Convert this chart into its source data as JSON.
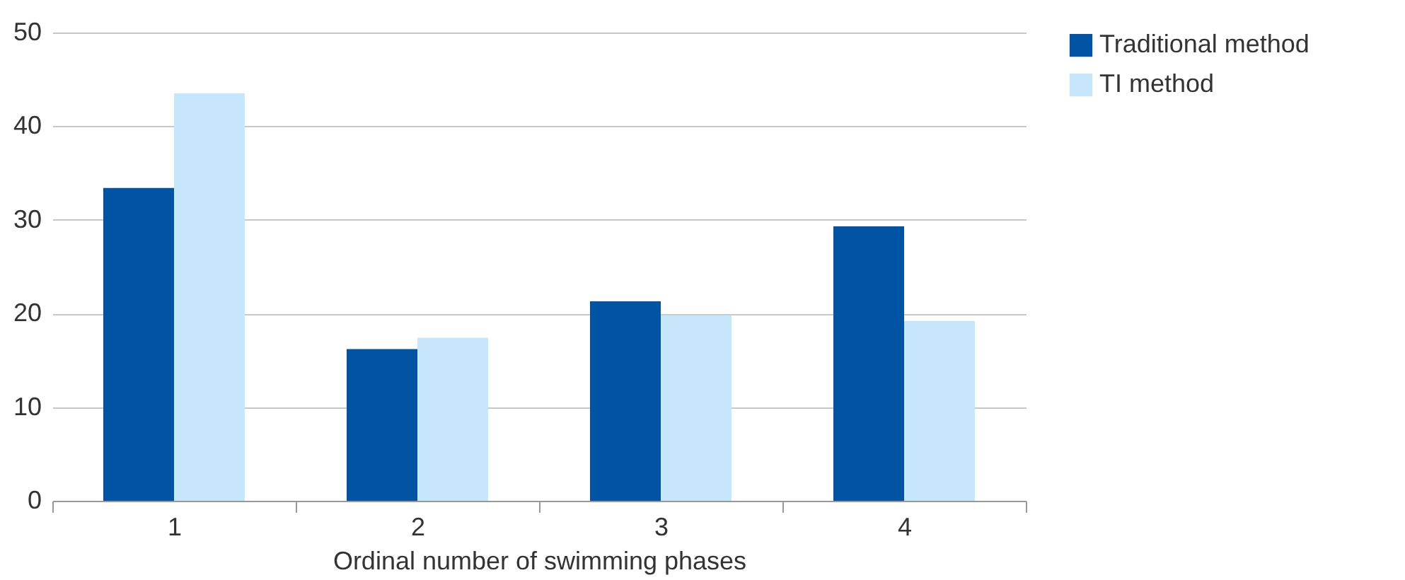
{
  "chart_data": {
    "type": "bar",
    "xlabel": "Ordinal number of swimming phases",
    "categories": [
      "1",
      "2",
      "3",
      "4"
    ],
    "series": [
      {
        "name": "Traditional method",
        "color": "#0054a3",
        "values": [
          33.4,
          16.2,
          21.3,
          29.3
        ]
      },
      {
        "name": "TI method",
        "color": "#c5e6fb",
        "values": [
          43.5,
          17.4,
          19.8,
          19.2
        ]
      }
    ],
    "ylim": [
      0,
      50
    ],
    "yticks": [
      0,
      10,
      20,
      30,
      40,
      50
    ],
    "grid": "y",
    "legend": "top right"
  }
}
